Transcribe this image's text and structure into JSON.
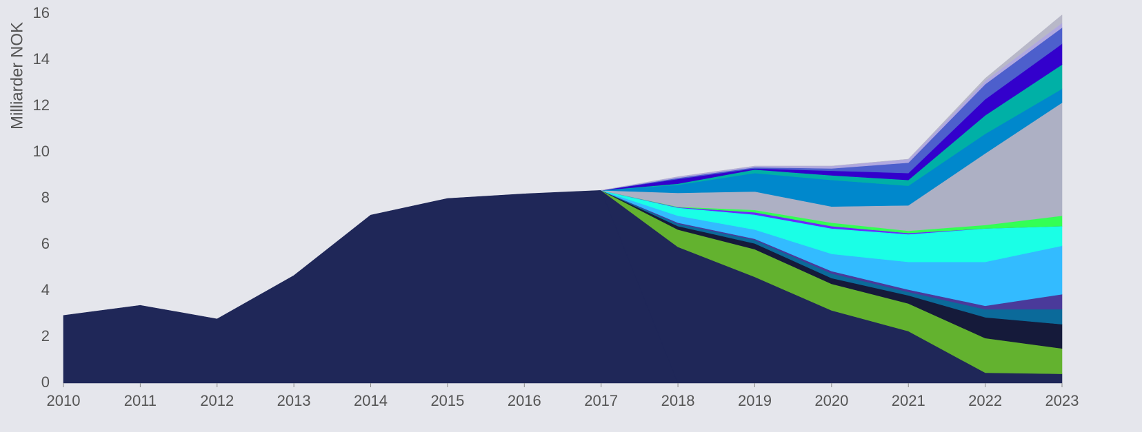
{
  "chart_data": {
    "type": "stacked_area",
    "y_label": "Milliarder NOK",
    "x": [
      2010,
      2011,
      2012,
      2013,
      2014,
      2015,
      2016,
      2017,
      2018,
      2019,
      2020,
      2021,
      2022,
      2023
    ],
    "xlim": [
      2010,
      2023
    ],
    "xticks": [
      2010,
      2011,
      2012,
      2013,
      2014,
      2015,
      2016,
      2017,
      2018,
      2019,
      2020,
      2021,
      2022,
      2023
    ],
    "ylim": [
      0,
      16
    ],
    "yticks": [
      0,
      2,
      4,
      6,
      8,
      10,
      12,
      14,
      16
    ],
    "grid": false,
    "series": [
      {
        "color": "#1f2758",
        "values": [
          2.93,
          3.37,
          2.78,
          4.66,
          7.28,
          8.0,
          8.2,
          8.35,
          0,
          null,
          null,
          null,
          null,
          null
        ]
      },
      {
        "color": "#1f2758",
        "values": [
          null,
          null,
          null,
          null,
          null,
          null,
          null,
          0,
          5.9,
          4.6,
          3.15,
          2.25,
          0.45,
          0.4
        ]
      },
      {
        "color": "#63b22f",
        "values": [
          null,
          null,
          null,
          null,
          null,
          null,
          null,
          0,
          0.75,
          1.2,
          1.15,
          1.2,
          1.5,
          1.1
        ]
      },
      {
        "color": "#151a3a",
        "values": [
          null,
          null,
          null,
          null,
          null,
          null,
          null,
          0,
          0.15,
          0.25,
          0.25,
          0.35,
          0.9,
          1.05
        ]
      },
      {
        "color": "#0b6a9a",
        "values": [
          null,
          null,
          null,
          null,
          null,
          null,
          null,
          0,
          0.1,
          0.15,
          0.2,
          0.15,
          0.35,
          0.65
        ]
      },
      {
        "color": "#4a3a9a",
        "values": [
          null,
          null,
          null,
          null,
          null,
          null,
          null,
          0,
          0.05,
          0.05,
          0.1,
          0.1,
          0.15,
          0.65
        ]
      },
      {
        "color": "#33bbff",
        "values": [
          null,
          null,
          null,
          null,
          null,
          null,
          null,
          0,
          0.3,
          0.4,
          0.75,
          1.2,
          1.9,
          2.1
        ]
      },
      {
        "color": "#1affe6",
        "values": [
          null,
          null,
          null,
          null,
          null,
          null,
          null,
          0,
          0.35,
          0.65,
          1.1,
          1.2,
          1.45,
          0.85
        ]
      },
      {
        "color": "#6a2aff",
        "values": [
          null,
          null,
          null,
          null,
          null,
          null,
          null,
          0,
          0.02,
          0.1,
          0.1,
          0.05,
          0,
          0
        ]
      },
      {
        "color": "#33ff55",
        "values": [
          null,
          null,
          null,
          null,
          null,
          null,
          null,
          0,
          0.02,
          0.1,
          0.15,
          0.1,
          0.15,
          0.45
        ]
      },
      {
        "color": "#adb0c4",
        "values": [
          null,
          null,
          null,
          null,
          null,
          null,
          null,
          0,
          0.6,
          0.8,
          0.7,
          1.1,
          3.1,
          4.9
        ]
      },
      {
        "color": "#0088cc",
        "values": [
          null,
          null,
          null,
          null,
          null,
          null,
          null,
          0,
          0.35,
          0.8,
          1.15,
          0.85,
          0.85,
          0.6
        ]
      },
      {
        "color": "#00b0a6",
        "values": [
          null,
          null,
          null,
          null,
          null,
          null,
          null,
          0,
          0.05,
          0.15,
          0.2,
          0.25,
          0.8,
          1.05
        ]
      },
      {
        "color": "#3300cc",
        "values": [
          null,
          null,
          null,
          null,
          null,
          null,
          null,
          0,
          0.2,
          0.05,
          0.2,
          0.3,
          0.7,
          0.9
        ]
      },
      {
        "color": "#4d5fcc",
        "values": [
          null,
          null,
          null,
          null,
          null,
          null,
          null,
          0,
          0.05,
          0.05,
          0.1,
          0.45,
          0.65,
          0.7
        ]
      },
      {
        "color": "#b0a8e0",
        "values": [
          null,
          null,
          null,
          null,
          null,
          null,
          null,
          0,
          0.05,
          0.05,
          0.1,
          0.15,
          0.15,
          0.2
        ]
      },
      {
        "color": "#b8b8c8",
        "values": [
          null,
          null,
          null,
          null,
          null,
          null,
          null,
          0,
          0,
          0,
          0,
          0,
          0.1,
          0.35
        ]
      }
    ]
  }
}
